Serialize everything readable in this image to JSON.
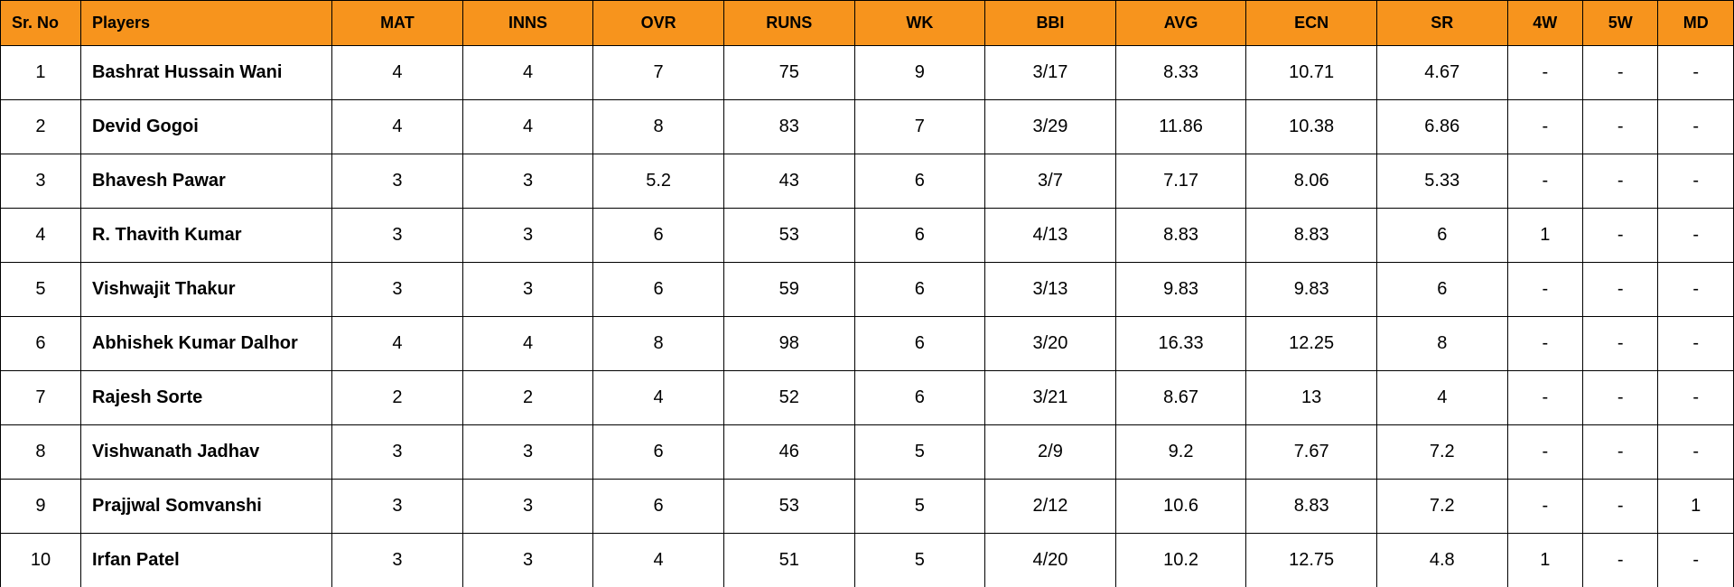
{
  "table": {
    "header_bg": "#f7941d",
    "border_color": "#000000",
    "columns": [
      {
        "key": "sr",
        "label": "Sr. No",
        "class": "col-sr"
      },
      {
        "key": "player",
        "label": "Players",
        "class": "col-player"
      },
      {
        "key": "mat",
        "label": "MAT",
        "class": "col-stat"
      },
      {
        "key": "inns",
        "label": "INNS",
        "class": "col-stat"
      },
      {
        "key": "ovr",
        "label": "OVR",
        "class": "col-stat"
      },
      {
        "key": "runs",
        "label": "RUNS",
        "class": "col-stat"
      },
      {
        "key": "wk",
        "label": "WK",
        "class": "col-stat"
      },
      {
        "key": "bbi",
        "label": "BBI",
        "class": "col-stat"
      },
      {
        "key": "avg",
        "label": "AVG",
        "class": "col-stat"
      },
      {
        "key": "ecn",
        "label": "ECN",
        "class": "col-stat"
      },
      {
        "key": "srate",
        "label": "SR",
        "class": "col-stat"
      },
      {
        "key": "w4",
        "label": "4W",
        "class": "col-narrow"
      },
      {
        "key": "w5",
        "label": "5W",
        "class": "col-narrow"
      },
      {
        "key": "md",
        "label": "MD",
        "class": "col-narrow"
      }
    ],
    "rows": [
      {
        "sr": "1",
        "player": "Bashrat Hussain Wani",
        "mat": "4",
        "inns": "4",
        "ovr": "7",
        "runs": "75",
        "wk": "9",
        "bbi": "3/17",
        "avg": "8.33",
        "ecn": "10.71",
        "srate": "4.67",
        "w4": "-",
        "w5": "-",
        "md": "-"
      },
      {
        "sr": "2",
        "player": "Devid Gogoi",
        "mat": "4",
        "inns": "4",
        "ovr": "8",
        "runs": "83",
        "wk": "7",
        "bbi": "3/29",
        "avg": "11.86",
        "ecn": "10.38",
        "srate": "6.86",
        "w4": "-",
        "w5": "-",
        "md": "-"
      },
      {
        "sr": "3",
        "player": "Bhavesh Pawar",
        "mat": "3",
        "inns": "3",
        "ovr": "5.2",
        "runs": "43",
        "wk": "6",
        "bbi": "3/7",
        "avg": "7.17",
        "ecn": "8.06",
        "srate": "5.33",
        "w4": "-",
        "w5": "-",
        "md": "-"
      },
      {
        "sr": "4",
        "player": "R. Thavith Kumar",
        "mat": "3",
        "inns": "3",
        "ovr": "6",
        "runs": "53",
        "wk": "6",
        "bbi": "4/13",
        "avg": "8.83",
        "ecn": "8.83",
        "srate": "6",
        "w4": "1",
        "w5": "-",
        "md": "-"
      },
      {
        "sr": "5",
        "player": "Vishwajit Thakur",
        "mat": "3",
        "inns": "3",
        "ovr": "6",
        "runs": "59",
        "wk": "6",
        "bbi": "3/13",
        "avg": "9.83",
        "ecn": "9.83",
        "srate": "6",
        "w4": "-",
        "w5": "-",
        "md": "-"
      },
      {
        "sr": "6",
        "player": "Abhishek Kumar Dalhor",
        "mat": "4",
        "inns": "4",
        "ovr": "8",
        "runs": "98",
        "wk": "6",
        "bbi": "3/20",
        "avg": "16.33",
        "ecn": "12.25",
        "srate": "8",
        "w4": "-",
        "w5": "-",
        "md": "-"
      },
      {
        "sr": "7",
        "player": "Rajesh Sorte",
        "mat": "2",
        "inns": "2",
        "ovr": "4",
        "runs": "52",
        "wk": "6",
        "bbi": "3/21",
        "avg": "8.67",
        "ecn": "13",
        "srate": "4",
        "w4": "-",
        "w5": "-",
        "md": "-"
      },
      {
        "sr": "8",
        "player": "Vishwanath Jadhav",
        "mat": "3",
        "inns": "3",
        "ovr": "6",
        "runs": "46",
        "wk": "5",
        "bbi": "2/9",
        "avg": "9.2",
        "ecn": "7.67",
        "srate": "7.2",
        "w4": "-",
        "w5": "-",
        "md": "-"
      },
      {
        "sr": "9",
        "player": "Prajjwal Somvanshi",
        "mat": "3",
        "inns": "3",
        "ovr": "6",
        "runs": "53",
        "wk": "5",
        "bbi": "2/12",
        "avg": "10.6",
        "ecn": "8.83",
        "srate": "7.2",
        "w4": "-",
        "w5": "-",
        "md": "1"
      },
      {
        "sr": "10",
        "player": "Irfan Patel",
        "mat": "3",
        "inns": "3",
        "ovr": "4",
        "runs": "51",
        "wk": "5",
        "bbi": "4/20",
        "avg": "10.2",
        "ecn": "12.75",
        "srate": "4.8",
        "w4": "1",
        "w5": "-",
        "md": "-"
      }
    ]
  }
}
